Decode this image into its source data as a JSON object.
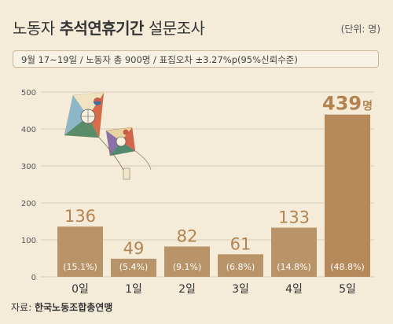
{
  "header": {
    "title_prefix": "노동자",
    "title_bold": "추석연휴기간",
    "title_suffix": "설문조사",
    "unit": "(단위: 명)",
    "survey_info": "9월 17~19일 / 노동자 총 900명 / 표집오차 ±3.27%p(95%신뢰수준)"
  },
  "source": {
    "label": "자료:",
    "value": "한국노동조합총연맹"
  },
  "colors": {
    "background": "#f4ecd9",
    "bar": "#b89468",
    "bar_highlight": "#b5895a",
    "value_text": "#b38350",
    "percent_text": "#ffffff",
    "grid": "#d9cdb6"
  },
  "chart_data": {
    "type": "bar",
    "categories": [
      "0일",
      "1일",
      "2일",
      "3일",
      "4일",
      "5일"
    ],
    "values": [
      136,
      49,
      82,
      61,
      133,
      439
    ],
    "value_labels": [
      "136",
      "49",
      "82",
      "61",
      "133",
      "439"
    ],
    "highlight_suffix": "명",
    "percent_labels": [
      "(15.1%)",
      "(5.4%)",
      "(9.1%)",
      "(6.8%)",
      "(14.8%)",
      "(48.8%)"
    ],
    "y_ticks": [
      0,
      100,
      200,
      300,
      400,
      500
    ],
    "ylim": [
      0,
      500
    ],
    "highlight_index": 5,
    "grid": true
  },
  "decoration": {
    "kite_icon": "traditional-korean-kite-icon"
  }
}
